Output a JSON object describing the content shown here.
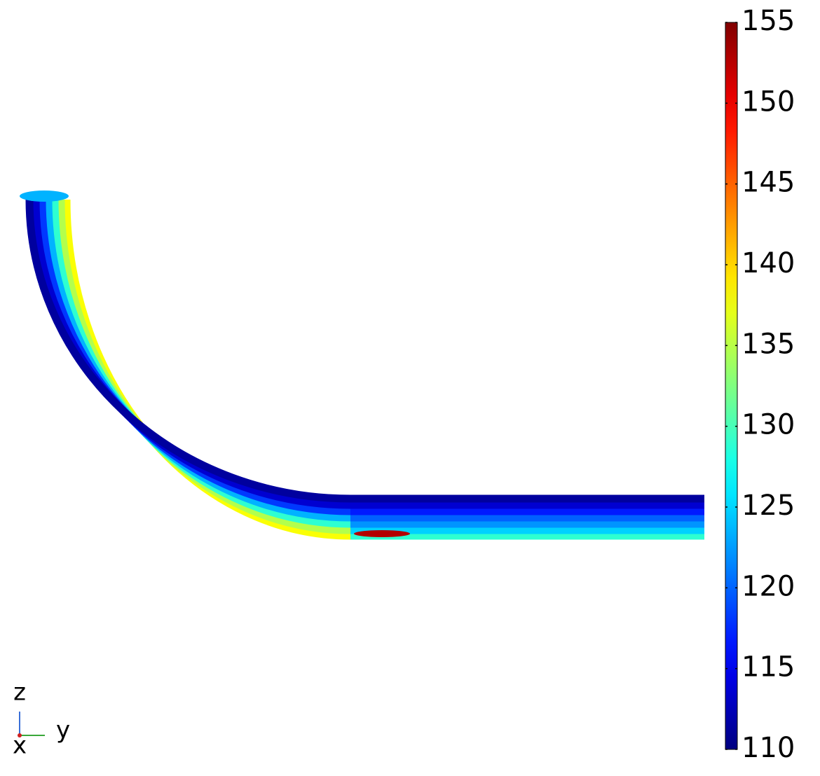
{
  "chart_data": {
    "type": "surface",
    "colorbar": {
      "colormap": "jet",
      "lim": [
        110,
        155
      ],
      "ticks": [
        110,
        115,
        120,
        125,
        130,
        135,
        140,
        145,
        150,
        155
      ]
    },
    "axis_labels": {
      "z": "z",
      "y": "y",
      "x": "x"
    }
  }
}
